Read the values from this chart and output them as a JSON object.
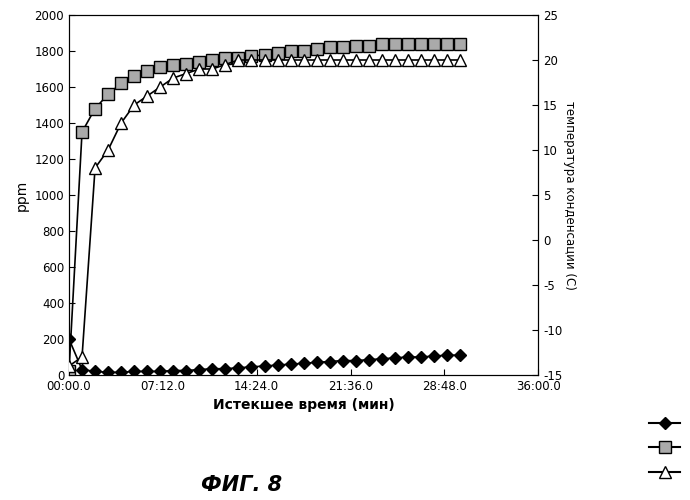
{
  "fig8_label": "ФИГ. 8",
  "xlabel": "Истекшее время (мин)",
  "ylabel_left": "ppm",
  "ylabel_right": "температура конденсации (С)",
  "xlim": [
    0,
    36
  ],
  "ylim_left": [
    0,
    2000
  ],
  "ylim_right": [
    -15,
    25
  ],
  "xticks_minutes": [
    0,
    7.2,
    14.4,
    21.6,
    28.8,
    36.0
  ],
  "xtick_labels": [
    "00:00.0",
    "07:12.0",
    "14:24.0",
    "21:36.0",
    "28:48.0",
    "36:00.0"
  ],
  "yticks_left": [
    0,
    200,
    400,
    600,
    800,
    1000,
    1200,
    1400,
    1600,
    1800,
    2000
  ],
  "yticks_right": [
    -15,
    -10,
    -5,
    0,
    5,
    10,
    15,
    20,
    25
  ],
  "CO_x": [
    0,
    1,
    2,
    3,
    4,
    5,
    6,
    7,
    8,
    9,
    10,
    11,
    12,
    13,
    14,
    15,
    16,
    17,
    18,
    19,
    20,
    21,
    22,
    23,
    24,
    25,
    26,
    27,
    28,
    29,
    30
  ],
  "CO_y": [
    200,
    30,
    20,
    15,
    15,
    20,
    20,
    20,
    25,
    25,
    30,
    35,
    35,
    40,
    45,
    50,
    55,
    60,
    65,
    70,
    75,
    80,
    80,
    85,
    90,
    95,
    100,
    100,
    105,
    110,
    110
  ],
  "CO2_x": [
    0,
    1,
    2,
    3,
    4,
    5,
    6,
    7,
    8,
    9,
    10,
    11,
    12,
    13,
    14,
    15,
    16,
    17,
    18,
    19,
    20,
    21,
    22,
    23,
    24,
    25,
    26,
    27,
    28,
    29,
    30
  ],
  "CO2_y": [
    20,
    1350,
    1480,
    1560,
    1620,
    1660,
    1690,
    1710,
    1720,
    1730,
    1740,
    1750,
    1760,
    1760,
    1770,
    1780,
    1790,
    1800,
    1800,
    1810,
    1820,
    1820,
    1830,
    1830,
    1840,
    1840,
    1840,
    1840,
    1840,
    1840,
    1840
  ],
  "Tdew_x": [
    0,
    1,
    2,
    3,
    4,
    5,
    6,
    7,
    8,
    9,
    10,
    11,
    12,
    13,
    14,
    15,
    16,
    17,
    18,
    19,
    20,
    21,
    22,
    23,
    24,
    25,
    26,
    27,
    28,
    29,
    30
  ],
  "Tdew_y": [
    -14,
    -13,
    8,
    10,
    13,
    15,
    16,
    17,
    18,
    18.5,
    19,
    19,
    19.5,
    20,
    20,
    20,
    20,
    20,
    20,
    20,
    20,
    20,
    20,
    20,
    20,
    20,
    20,
    20,
    20,
    20,
    20
  ],
  "background_color": "#ffffff"
}
